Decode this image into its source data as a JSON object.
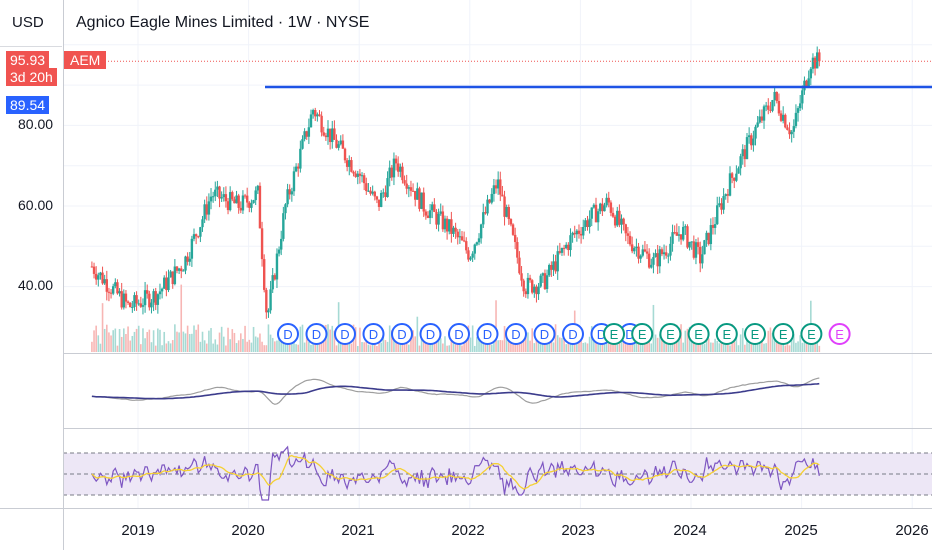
{
  "header": {
    "currency": "USD",
    "title": "Agnico Eagle Mines Limited · 1W · NYSE"
  },
  "price_scale": {
    "ticks": [
      "80.00",
      "60.00",
      "40.00"
    ],
    "last_price": "95.93",
    "countdown": "3d 20h",
    "level_price": "89.54"
  },
  "symbol_tag": "AEM",
  "time_axis": {
    "labels": [
      "2019",
      "2020",
      "2021",
      "2022",
      "2023",
      "2024",
      "2025",
      "2026"
    ]
  },
  "events": {
    "dividend_label": "D",
    "earnings_label": "E"
  },
  "colors": {
    "up": "#26a69a",
    "down": "#ef5350",
    "level_line": "#1e53e5",
    "dividend": "#2962ff",
    "earnings": "#089981",
    "earnings_next": "#e040fb",
    "ma_blue": "#3c3c8c",
    "rsi": "#7e57c2",
    "rsi_ma": "#f5d033",
    "rsi_band": "#ede7f6"
  },
  "chart_data": {
    "type": "candlestick",
    "interval": "1W",
    "x_range": [
      "2018-08",
      "2026-03"
    ],
    "y_range": [
      24,
      100
    ],
    "horizontal_level": 89.54,
    "last_price": 95.93,
    "price_path": [
      [
        "2018-08",
        45
      ],
      [
        "2018-10",
        40
      ],
      [
        "2018-12",
        35
      ],
      [
        "2019-03",
        38
      ],
      [
        "2019-06",
        46
      ],
      [
        "2019-08",
        57
      ],
      [
        "2019-09",
        63
      ],
      [
        "2019-12",
        60
      ],
      [
        "2020-02",
        63
      ],
      [
        "2020-03",
        32
      ],
      [
        "2020-05",
        60
      ],
      [
        "2020-08",
        84
      ],
      [
        "2020-10",
        77
      ],
      [
        "2021-01",
        68
      ],
      [
        "2021-03",
        60
      ],
      [
        "2021-05",
        71
      ],
      [
        "2021-08",
        60
      ],
      [
        "2021-11",
        54
      ],
      [
        "2022-01",
        48
      ],
      [
        "2022-04",
        66
      ],
      [
        "2022-07",
        40
      ],
      [
        "2022-09",
        41
      ],
      [
        "2022-12",
        52
      ],
      [
        "2023-02",
        57
      ],
      [
        "2023-04",
        61
      ],
      [
        "2023-06",
        52
      ],
      [
        "2023-09",
        46
      ],
      [
        "2023-12",
        54
      ],
      [
        "2024-02",
        47
      ],
      [
        "2024-05",
        65
      ],
      [
        "2024-08",
        79
      ],
      [
        "2024-10",
        87
      ],
      [
        "2024-12",
        78
      ],
      [
        "2025-02",
        96
      ],
      [
        "2025-03",
        95.93
      ]
    ],
    "dividends_count": 13,
    "earnings_count": 9
  }
}
